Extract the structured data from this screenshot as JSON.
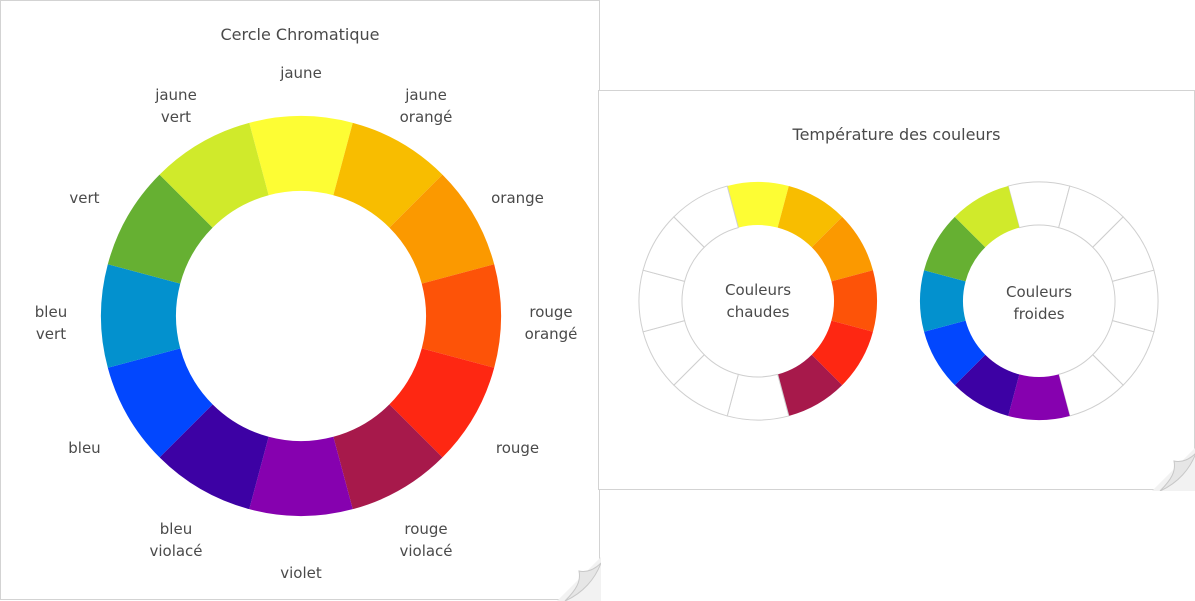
{
  "wheel_card": {
    "title": "Cercle Chromatique",
    "segments": [
      {
        "name": "yellow",
        "lines": [
          "jaune"
        ],
        "color": "#fdfd34"
      },
      {
        "name": "yellow-orange",
        "lines": [
          "jaune",
          "orangé"
        ],
        "color": "#f8bd00"
      },
      {
        "name": "orange",
        "lines": [
          "orange"
        ],
        "color": "#fb9900"
      },
      {
        "name": "red-orange",
        "lines": [
          "rouge",
          "orangé"
        ],
        "color": "#fd5308"
      },
      {
        "name": "red",
        "lines": [
          "rouge"
        ],
        "color": "#fe2712"
      },
      {
        "name": "red-violet",
        "lines": [
          "rouge",
          "violacé"
        ],
        "color": "#a7194b"
      },
      {
        "name": "violet",
        "lines": [
          "violet"
        ],
        "color": "#8601af"
      },
      {
        "name": "blue-violet",
        "lines": [
          "bleu",
          "violacé"
        ],
        "color": "#3d01a4"
      },
      {
        "name": "blue",
        "lines": [
          "bleu"
        ],
        "color": "#0247fe"
      },
      {
        "name": "blue-green",
        "lines": [
          "bleu",
          "vert"
        ],
        "color": "#0391ce"
      },
      {
        "name": "green",
        "lines": [
          "vert"
        ],
        "color": "#66b032"
      },
      {
        "name": "yellow-green",
        "lines": [
          "jaune",
          "vert"
        ],
        "color": "#d0ea2b"
      }
    ]
  },
  "temperature_card": {
    "title": "Température des couleurs",
    "warm_wheel": {
      "center_lines": [
        "Couleurs",
        "chaudes"
      ],
      "filled": [
        0,
        1,
        2,
        3,
        4,
        5
      ]
    },
    "cool_wheel": {
      "center_lines": [
        "Couleurs",
        "froides"
      ],
      "filled": [
        6,
        7,
        8,
        9,
        10,
        11
      ]
    }
  },
  "colors": {
    "empty_segment": "#ffffff",
    "segment_outline": "#cfcfcf",
    "text": "#4a4a4a"
  }
}
